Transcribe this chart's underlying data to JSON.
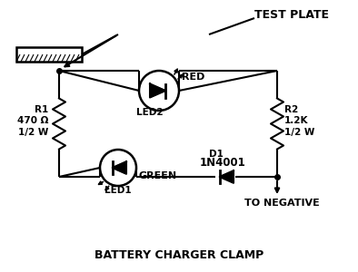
{
  "bg_color": "#ffffff",
  "line_color": "#000000",
  "text_color": "#000000",
  "labels": {
    "test_plate": "TEST PLATE",
    "red": "RED",
    "led2": "LED2",
    "r1": "R1",
    "r1_val": "470 Ω",
    "r1_w": "1/2 W",
    "d1": "D1",
    "d1_val": "1N4001",
    "green": "GREEN",
    "led1": "LED1",
    "r2": "R2",
    "r2_val": "1.2K",
    "r2_w": "1/2 W",
    "negative": "TO NEGATIVE",
    "clamp": "BATTERY CHARGER CLAMP"
  },
  "figsize": [
    3.94,
    3.0
  ],
  "dpi": 100
}
